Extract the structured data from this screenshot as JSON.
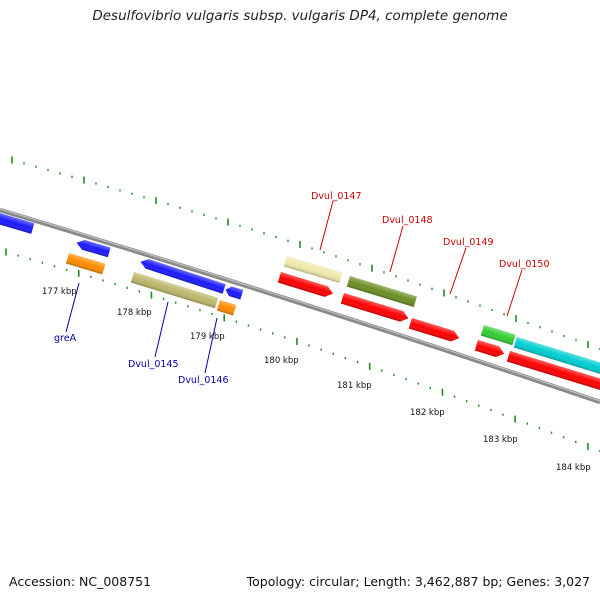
{
  "title": "Desulfovibrio vulgaris subsp. vulgaris DP4, complete genome",
  "footer": {
    "accession": "Accession: NC_008751",
    "topology": "Topology: circular; Length: 3,462,887 bp; Genes: 3,027"
  },
  "colors": {
    "backbone": "#8a8a8a",
    "tick": "#228b22",
    "label_forward": "#cc0000",
    "label_reverse": "#0000aa",
    "blue": "#1a1aff",
    "orange": "#ff8c00",
    "khaki": "#bdb76b",
    "red": "#ff0000",
    "pale_yellow": "#eee8aa",
    "olive": "#6b8e23",
    "green": "#32cd32",
    "cyan": "#00ced1"
  },
  "kbp_labels": [
    "177 kbp",
    "178 kbp",
    "179 kbp",
    "180 kbp",
    "181 kbp",
    "182 kbp",
    "183 kbp",
    "184 kbp"
  ],
  "gene_labels": {
    "greA": "greA",
    "dvul_0145": "Dvul_0145",
    "dvul_0146": "Dvul_0146",
    "dvul_0147": "Dvul_0147",
    "dvul_0148": "Dvul_0148",
    "dvul_0149": "Dvul_0149",
    "dvul_0150": "Dvul_0150"
  }
}
